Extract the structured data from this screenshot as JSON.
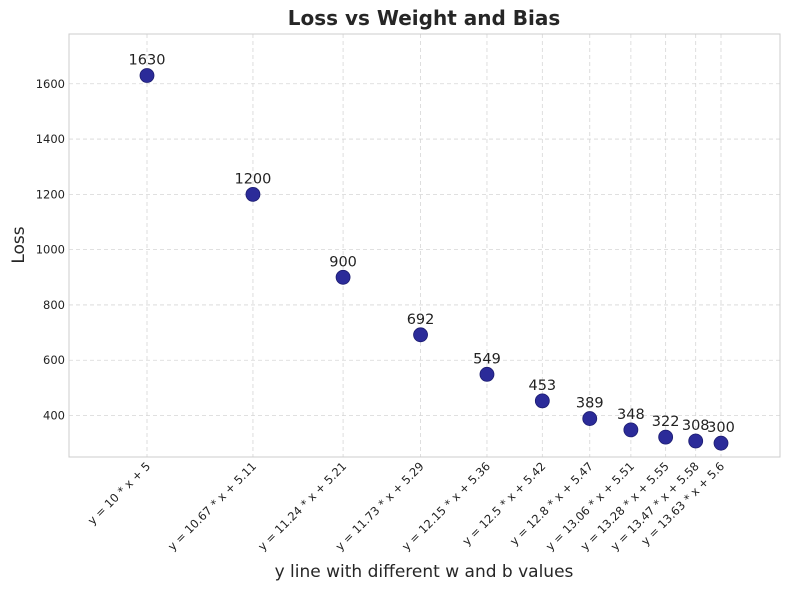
{
  "chart_data": {
    "type": "scatter",
    "title": "Loss vs Weight and Bias",
    "xlabel": "y line with different w and b values",
    "ylabel": "Loss",
    "ylim": [
      250,
      1780
    ],
    "yticks": [
      400,
      600,
      800,
      1000,
      1200,
      1400,
      1600
    ],
    "grid": true,
    "marker_color": "#2b2b99",
    "points": [
      {
        "label": "y = 10 * x + 5",
        "w": 10,
        "b": 5,
        "loss": 1630
      },
      {
        "label": "y = 10.67 * x + 5.11",
        "w": 10.67,
        "b": 5.11,
        "loss": 1200
      },
      {
        "label": "y = 11.24 * x + 5.21",
        "w": 11.24,
        "b": 5.21,
        "loss": 900
      },
      {
        "label": "y = 11.73 * x + 5.29",
        "w": 11.73,
        "b": 5.29,
        "loss": 692
      },
      {
        "label": "y = 12.15 * x + 5.36",
        "w": 12.15,
        "b": 5.36,
        "loss": 549
      },
      {
        "label": "y = 12.5 * x + 5.42",
        "w": 12.5,
        "b": 5.42,
        "loss": 453
      },
      {
        "label": "y = 12.8 * x + 5.47",
        "w": 12.8,
        "b": 5.47,
        "loss": 389
      },
      {
        "label": "y = 13.06 * x + 5.51",
        "w": 13.06,
        "b": 5.51,
        "loss": 348
      },
      {
        "label": "y = 13.28 * x + 5.55",
        "w": 13.28,
        "b": 5.55,
        "loss": 322
      },
      {
        "label": "y = 13.47 * x + 5.58",
        "w": 13.47,
        "b": 5.58,
        "loss": 308
      },
      {
        "label": "y = 13.63 * x + 5.6",
        "w": 13.63,
        "b": 5.6,
        "loss": 300
      }
    ]
  }
}
